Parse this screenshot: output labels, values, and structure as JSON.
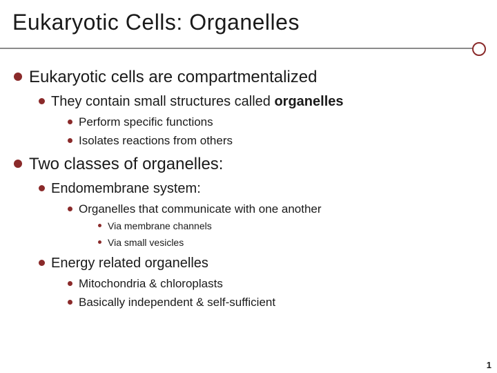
{
  "title": "Eukaryotic Cells: Organelles",
  "bullet_color": "#8a2a2a",
  "rule_color": "#8a8a8a",
  "text_color": "#1a1a1a",
  "page_number": "1",
  "points": {
    "p1": "Eukaryotic cells are compartmentalized",
    "p1_1_prefix": "They contain small structures called ",
    "p1_1_bold": "organelles",
    "p1_1_a": "Perform specific functions",
    "p1_1_b": "Isolates reactions from others",
    "p2": "Two classes of organelles:",
    "p2_1": "Endomembrane system:",
    "p2_1_a": "Organelles that communicate with one another",
    "p2_1_a_i": "Via membrane channels",
    "p2_1_a_ii": "Via small vesicles",
    "p2_2": "Energy related organelles",
    "p2_2_a": "Mitochondria & chloroplasts",
    "p2_2_b": "Basically independent & self-sufficient"
  }
}
